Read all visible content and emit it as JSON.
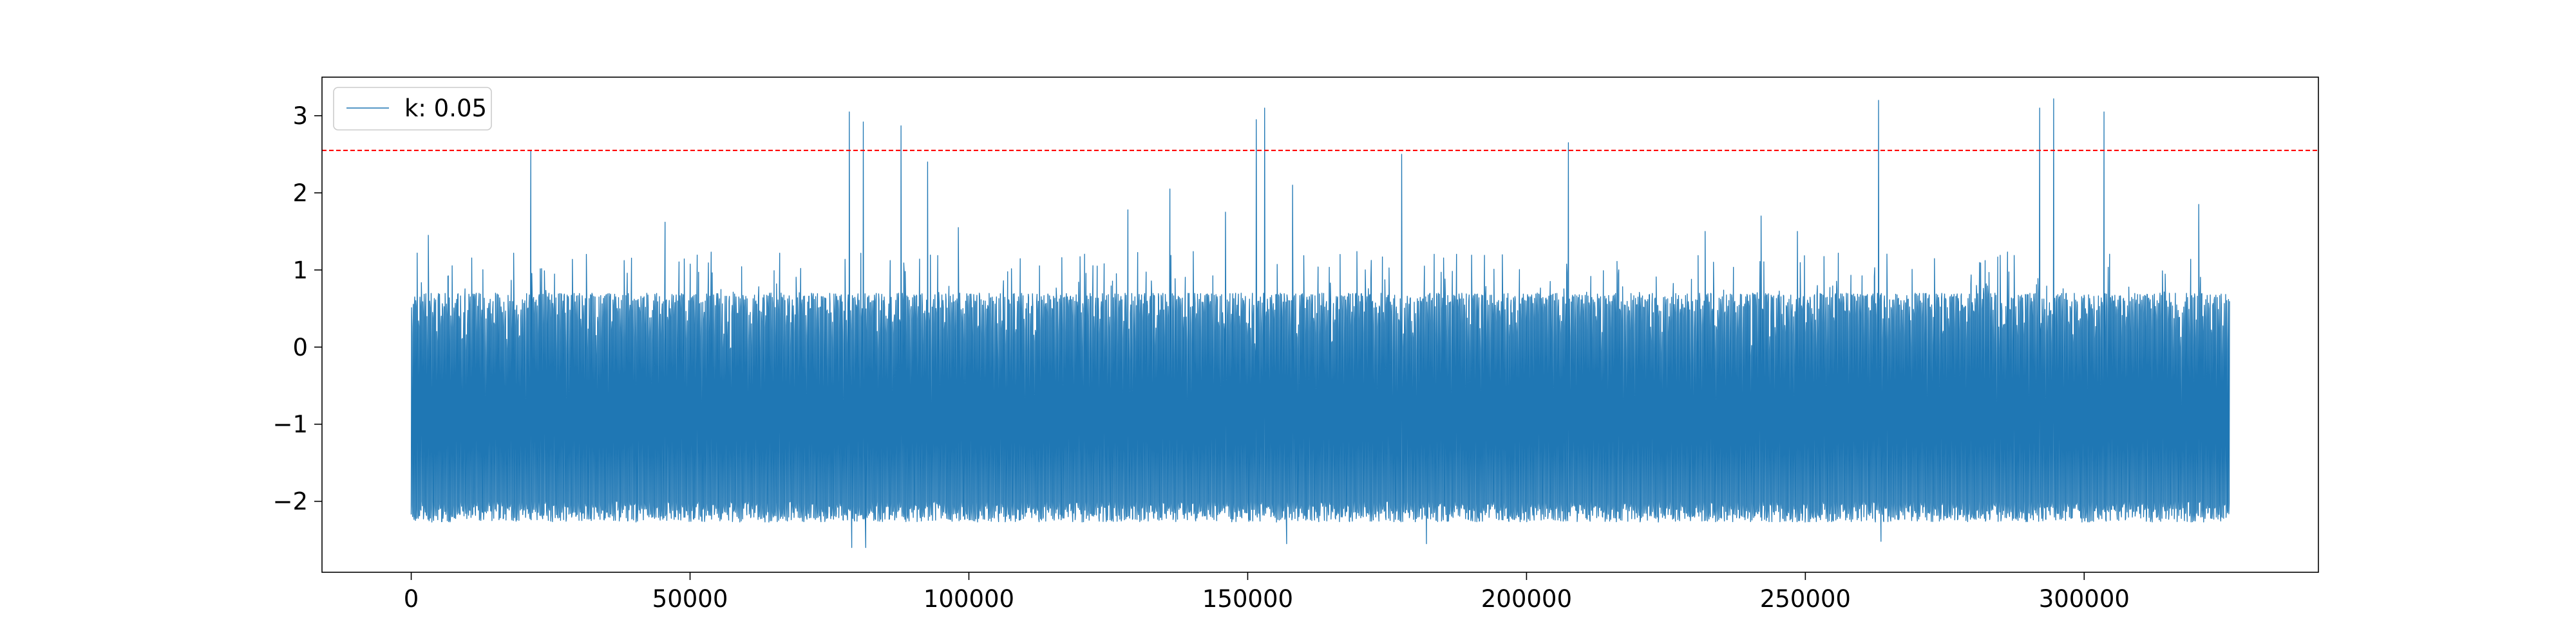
{
  "chart_data": {
    "type": "line",
    "title": "",
    "xlabel": "",
    "ylabel": "",
    "xlim": [
      -16000,
      342000
    ],
    "ylim": [
      -2.92,
      3.5
    ],
    "x_ticks": [
      0,
      50000,
      100000,
      150000,
      200000,
      250000,
      300000
    ],
    "x_tick_labels": [
      "0",
      "50000",
      "100000",
      "150000",
      "200000",
      "250000",
      "300000"
    ],
    "y_ticks": [
      3,
      2,
      1,
      0,
      -1,
      -2
    ],
    "y_tick_labels": [
      "3",
      "2",
      "1",
      "0",
      "−1",
      "−2"
    ],
    "grid": false,
    "legend_position": "top-left",
    "series": [
      {
        "name": "k: 0.05",
        "color": "#1f77b4",
        "x_start": 0,
        "x_end": 326000,
        "typical_low": -2.0,
        "typical_high": 0.7,
        "min_value": -2.6,
        "max_value": 3.2,
        "spikes": [
          {
            "x": 1000,
            "y": 1.22
          },
          {
            "x": 3000,
            "y": 1.45
          },
          {
            "x": 21500,
            "y": 2.55
          },
          {
            "x": 45500,
            "y": 1.62
          },
          {
            "x": 78500,
            "y": 3.05
          },
          {
            "x": 81000,
            "y": 2.92
          },
          {
            "x": 87800,
            "y": 2.87
          },
          {
            "x": 92500,
            "y": 2.4
          },
          {
            "x": 98000,
            "y": 1.55
          },
          {
            "x": 128500,
            "y": 1.78
          },
          {
            "x": 136000,
            "y": 2.05
          },
          {
            "x": 146000,
            "y": 1.75
          },
          {
            "x": 151500,
            "y": 2.95
          },
          {
            "x": 153000,
            "y": 3.1
          },
          {
            "x": 158000,
            "y": 2.1
          },
          {
            "x": 177500,
            "y": 2.5
          },
          {
            "x": 207500,
            "y": 2.65
          },
          {
            "x": 232000,
            "y": 1.5
          },
          {
            "x": 242000,
            "y": 1.7
          },
          {
            "x": 248500,
            "y": 1.5
          },
          {
            "x": 263000,
            "y": 3.2
          },
          {
            "x": 292000,
            "y": 3.1
          },
          {
            "x": 294500,
            "y": 3.22
          },
          {
            "x": 303500,
            "y": 3.05
          },
          {
            "x": 320500,
            "y": 1.85
          }
        ],
        "dips": [
          {
            "x": 79000,
            "y": -2.6
          },
          {
            "x": 81500,
            "y": -2.6
          },
          {
            "x": 157000,
            "y": -2.55
          },
          {
            "x": 182000,
            "y": -2.55
          },
          {
            "x": 263500,
            "y": -2.52
          }
        ]
      }
    ],
    "reference_lines": [
      {
        "orientation": "horizontal",
        "y": 2.55,
        "color": "#ff0000",
        "style": "dashed"
      }
    ]
  }
}
